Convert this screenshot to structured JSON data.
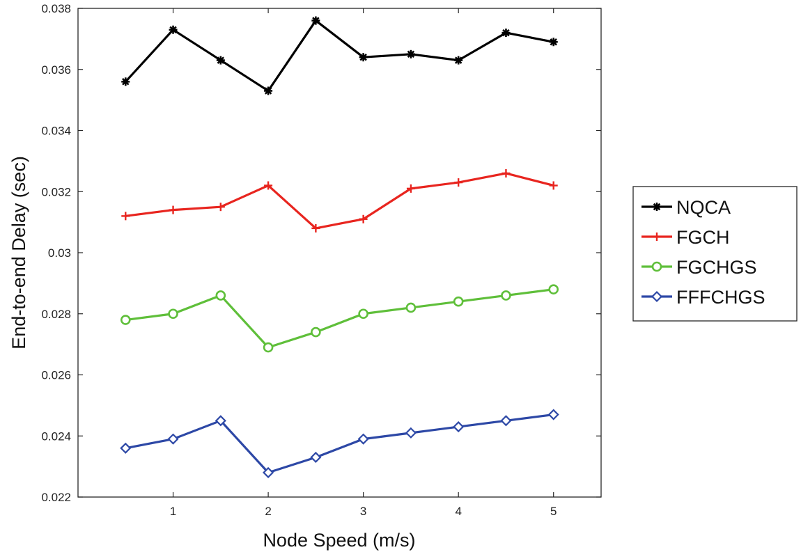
{
  "chart_data": {
    "type": "line",
    "title": "",
    "xlabel": "Node Speed (m/s)",
    "ylabel": "End-to-end Delay (sec)",
    "xlim": [
      0,
      5.5
    ],
    "ylim": [
      0.022,
      0.038
    ],
    "xticks": [
      1,
      2,
      3,
      4,
      5
    ],
    "xtick_labels": [
      "1",
      "2",
      "3",
      "4",
      "5"
    ],
    "yticks": [
      0.022,
      0.024,
      0.026,
      0.028,
      0.03,
      0.032,
      0.034,
      0.036,
      0.038
    ],
    "ytick_labels": [
      "0.022",
      "0.024",
      "0.026",
      "0.028",
      "0.03",
      "0.032",
      "0.034",
      "0.036",
      "0.038"
    ],
    "grid": false,
    "legend_position": "right",
    "x": [
      0.5,
      1,
      1.5,
      2,
      2.5,
      3,
      3.5,
      4,
      4.5,
      5
    ],
    "series": [
      {
        "name": "NQCA",
        "color": "#000000",
        "marker": "asterisk",
        "values": [
          0.0356,
          0.0373,
          0.0363,
          0.0353,
          0.0376,
          0.0364,
          0.0365,
          0.0363,
          0.0372,
          0.0369
        ]
      },
      {
        "name": "FGCH",
        "color": "#e8251f",
        "marker": "plus",
        "values": [
          0.0312,
          0.0314,
          0.0315,
          0.0322,
          0.0308,
          0.0311,
          0.0321,
          0.0323,
          0.0326,
          0.0322
        ]
      },
      {
        "name": "FGCHGS",
        "color": "#5fbf3a",
        "marker": "circle",
        "values": [
          0.0278,
          0.028,
          0.0286,
          0.0269,
          0.0274,
          0.028,
          0.0282,
          0.0284,
          0.0286,
          0.0288
        ]
      },
      {
        "name": "FFFCHGS",
        "color": "#2d48a6",
        "marker": "diamond",
        "values": [
          0.0236,
          0.0239,
          0.0245,
          0.0228,
          0.0233,
          0.0239,
          0.0241,
          0.0243,
          0.0245,
          0.0247
        ]
      }
    ]
  }
}
